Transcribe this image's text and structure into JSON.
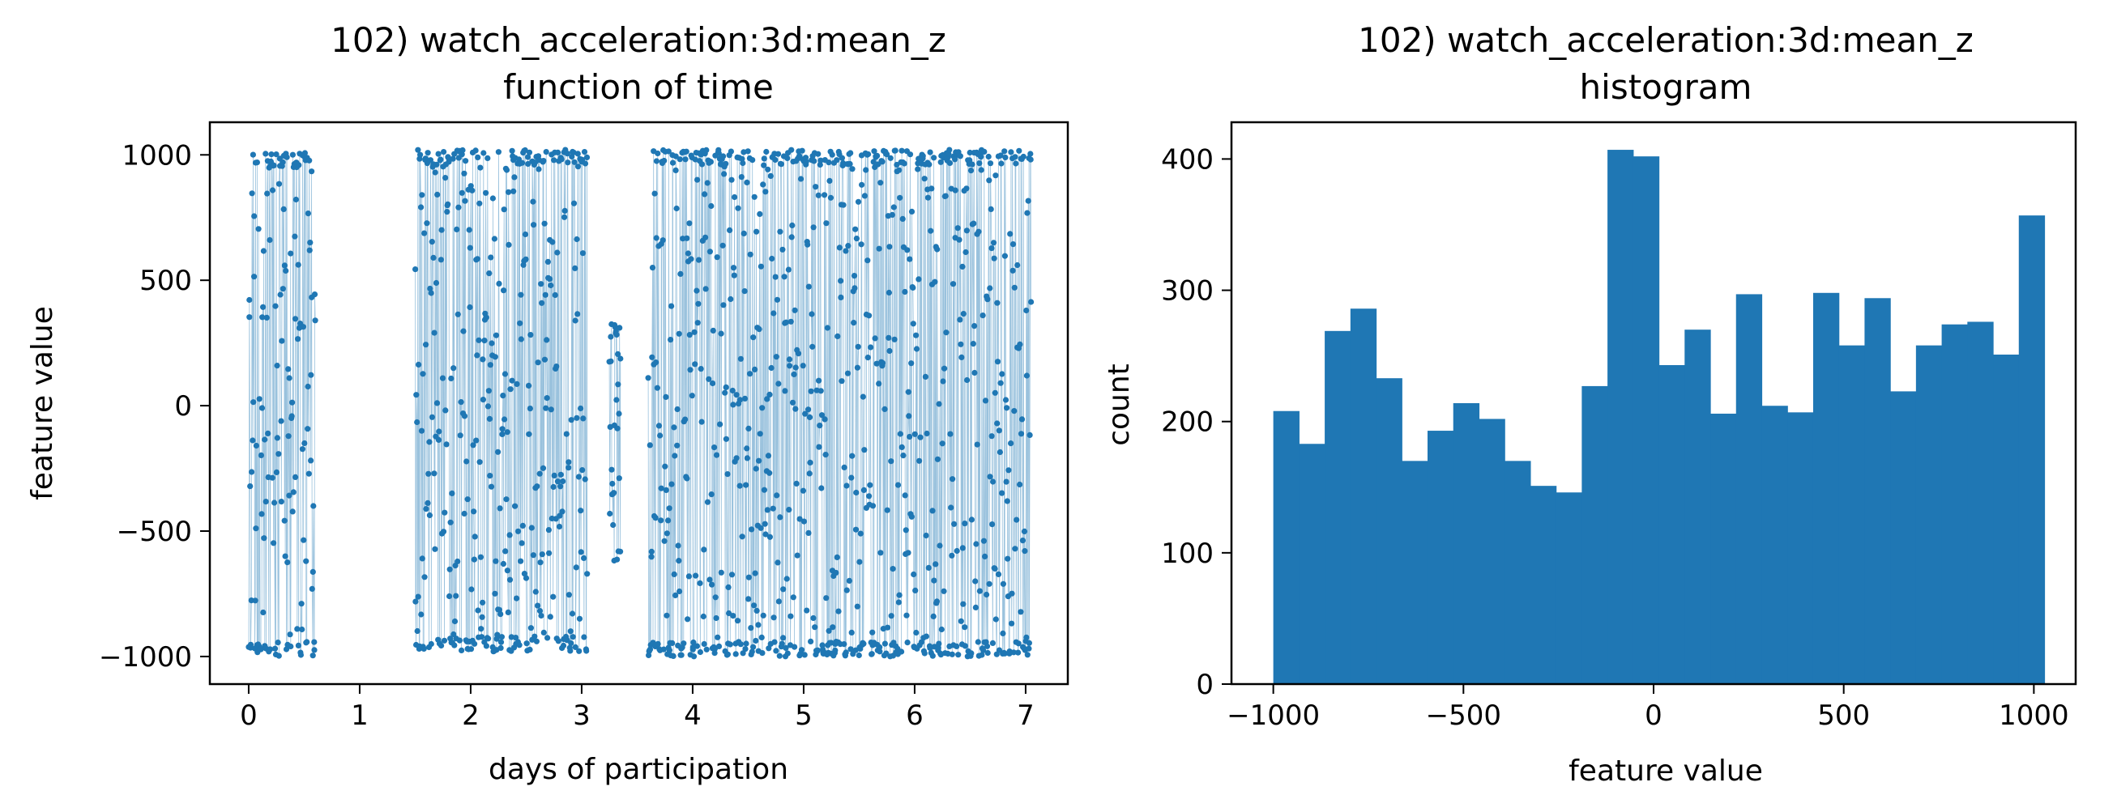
{
  "chart_data": [
    {
      "type": "scatter",
      "title": "102) watch_acceleration:3d:mean_z",
      "subtitle": "function of time",
      "xlabel": "days of participation",
      "ylabel": "feature value",
      "xlim": [
        -0.35,
        7.38
      ],
      "ylim": [
        -1110,
        1130
      ],
      "xticks": [
        0,
        1,
        2,
        3,
        4,
        5,
        6,
        7
      ],
      "yticks": [
        -1000,
        -500,
        0,
        500,
        1000
      ],
      "ytick_labels": [
        "−1000",
        "−500",
        "0",
        "500",
        "1000"
      ],
      "grid": false,
      "color": "#1f77b4",
      "segments": [
        {
          "x_start": 0.0,
          "x_end": 0.6,
          "y_min": -1000,
          "y_max": 1010
        },
        {
          "x_start": 1.5,
          "x_end": 3.05,
          "y_min": -980,
          "y_max": 1020
        },
        {
          "x_start": 3.25,
          "x_end": 3.35,
          "y_min": -620,
          "y_max": 340
        },
        {
          "x_start": 3.6,
          "x_end": 7.05,
          "y_min": -1000,
          "y_max": 1020
        }
      ]
    },
    {
      "type": "bar",
      "title": "102) watch_acceleration:3d:mean_z",
      "subtitle": "histogram",
      "xlabel": "feature value",
      "ylabel": "count",
      "xlim": [
        -1110,
        1110
      ],
      "ylim": [
        0,
        428
      ],
      "xticks": [
        -1000,
        -500,
        0,
        500,
        1000
      ],
      "xtick_labels": [
        "−1000",
        "−500",
        "0",
        "500",
        "1000"
      ],
      "yticks": [
        0,
        100,
        200,
        300,
        400
      ],
      "grid": false,
      "color": "#1f77b4",
      "bin_start": -1000,
      "bin_width": 67.6,
      "values": [
        208,
        183,
        269,
        286,
        233,
        170,
        193,
        214,
        202,
        170,
        151,
        146,
        227,
        407,
        402,
        243,
        270,
        206,
        297,
        212,
        207,
        298,
        258,
        294,
        223,
        258,
        274,
        276,
        251,
        357
      ]
    }
  ]
}
